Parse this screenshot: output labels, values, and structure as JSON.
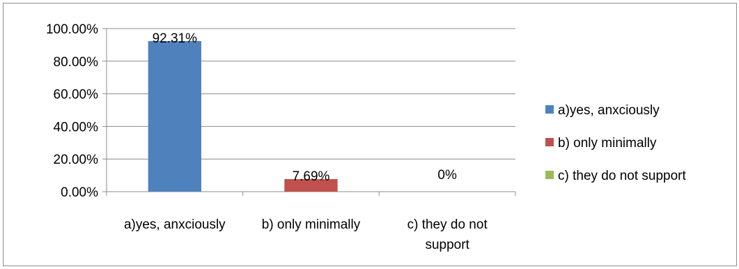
{
  "chart_data": {
    "type": "bar",
    "categories": [
      "a)yes, anxciously",
      "b) only minimally",
      "c) they do not support"
    ],
    "category_label_lines": [
      [
        "a)yes, anxciously"
      ],
      [
        "b) only minimally"
      ],
      [
        "c) they do not",
        "support"
      ]
    ],
    "values": [
      92.31,
      7.69,
      0
    ],
    "data_labels": [
      "92.31%",
      "7.69%",
      "0%"
    ],
    "colors": [
      "#4f81bd",
      "#c0504d",
      "#9bbb59"
    ],
    "ylim": [
      0,
      100
    ],
    "yticks": [
      0,
      20,
      40,
      60,
      80,
      100
    ],
    "ytick_labels": [
      "0.00%",
      "20.00%",
      "40.00%",
      "60.00%",
      "80.00%",
      "100.00%"
    ],
    "grid": true,
    "legend_position": "right",
    "legend": [
      "a)yes, anxciously",
      "b) only minimally",
      "c) they do not support"
    ],
    "title": "",
    "xlabel": "",
    "ylabel": ""
  }
}
